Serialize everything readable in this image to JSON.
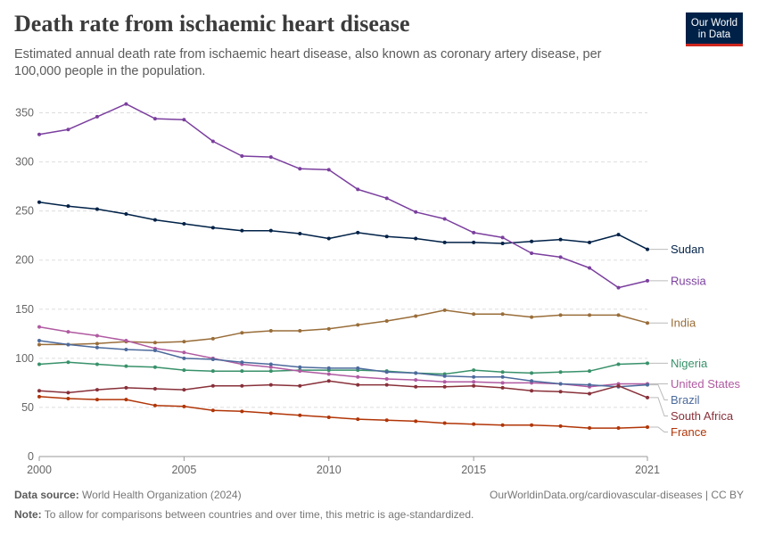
{
  "header": {
    "title": "Death rate from ischaemic heart disease",
    "subtitle": "Estimated annual death rate from ischaemic heart disease, also known as coronary artery disease, per 100,000 people in the population.",
    "logo_line1": "Our World",
    "logo_line2": "in Data"
  },
  "footer": {
    "source_label": "Data source:",
    "source_text": "World Health Organization (2024)",
    "url": "OurWorldinData.org/cardiovascular-diseases | CC BY",
    "note_label": "Note:",
    "note_text": "To allow for comparisons between countries and over time, this metric is age-standardized."
  },
  "chart_data": {
    "type": "line",
    "x": [
      2000,
      2001,
      2002,
      2003,
      2004,
      2005,
      2006,
      2007,
      2008,
      2009,
      2010,
      2011,
      2012,
      2013,
      2014,
      2015,
      2016,
      2017,
      2018,
      2019,
      2020,
      2021
    ],
    "xticks": [
      2000,
      2005,
      2010,
      2015,
      2021
    ],
    "yticks": [
      0,
      50,
      100,
      150,
      200,
      250,
      300,
      350
    ],
    "ylim": [
      0,
      365
    ],
    "grid": "horizontal dashed",
    "legend": "right, labels at line ends",
    "series": [
      {
        "name": "Sudan",
        "color": "#002147",
        "values": [
          259,
          255,
          252,
          247,
          241,
          237,
          233,
          230,
          230,
          227,
          222,
          228,
          224,
          222,
          218,
          218,
          217,
          219,
          221,
          218,
          226,
          211
        ]
      },
      {
        "name": "Russia",
        "color": "#7b3f9e",
        "values": [
          328,
          333,
          346,
          359,
          344,
          343,
          321,
          306,
          305,
          293,
          292,
          272,
          263,
          249,
          242,
          228,
          223,
          207,
          203,
          192,
          172,
          179
        ]
      },
      {
        "name": "India",
        "color": "#996d39",
        "values": [
          114,
          114,
          115,
          117,
          116,
          117,
          120,
          126,
          128,
          128,
          130,
          134,
          138,
          143,
          149,
          145,
          145,
          142,
          144,
          144,
          144,
          136
        ]
      },
      {
        "name": "Nigeria",
        "color": "#38916a",
        "values": [
          94,
          96,
          94,
          92,
          91,
          88,
          87,
          87,
          87,
          88,
          88,
          88,
          87,
          85,
          84,
          88,
          86,
          85,
          86,
          87,
          94,
          95
        ]
      },
      {
        "name": "United States",
        "color": "#b05aa1",
        "values": [
          132,
          127,
          123,
          118,
          110,
          106,
          100,
          94,
          91,
          87,
          84,
          81,
          79,
          78,
          76,
          76,
          75,
          75,
          74,
          71,
          74,
          74
        ]
      },
      {
        "name": "Brazil",
        "color": "#4c6a9c",
        "values": [
          118,
          114,
          111,
          109,
          108,
          100,
          99,
          96,
          94,
          91,
          90,
          90,
          86,
          85,
          82,
          81,
          81,
          77,
          74,
          73,
          71,
          73
        ]
      },
      {
        "name": "South Africa",
        "color": "#883039",
        "values": [
          67,
          65,
          68,
          70,
          69,
          68,
          72,
          72,
          73,
          72,
          77,
          73,
          73,
          71,
          71,
          72,
          70,
          67,
          66,
          64,
          72,
          60
        ]
      },
      {
        "name": "France",
        "color": "#b13507",
        "values": [
          61,
          59,
          58,
          58,
          52,
          51,
          47,
          46,
          44,
          42,
          40,
          38,
          37,
          36,
          34,
          33,
          32,
          32,
          31,
          29,
          29,
          30
        ]
      }
    ]
  }
}
